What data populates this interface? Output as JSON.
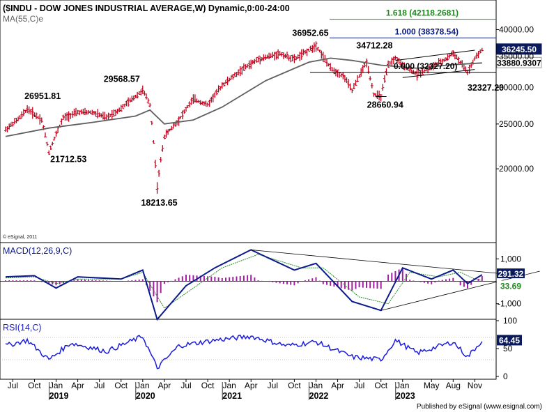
{
  "title": "($INDU - DOW JONES INDUSTRIAL AVERAGE,W) Dynamic,0:00-24:00",
  "ma_label": "MA(55,C)e",
  "copyright": "© eSignal, 2011",
  "publisher": "Published by eSignal (www.esignal.com)",
  "colors": {
    "price": "#c0001a",
    "ma": "#606060",
    "macd": "#0a1a8c",
    "signal": "#2a8a2a",
    "histogram": "#a020a0",
    "rsi": "#1a1adc",
    "fib_green": "#1a8a1a",
    "fib_blue": "#0a1a7c",
    "badge_bg": "#0a1a5c",
    "badge_alt_bg": "#ffffff",
    "badge_green_bg": "#1a8a1a"
  },
  "chart_data": [
    {
      "type": "line",
      "name": "price",
      "title": "($INDU - DOW JONES INDUSTRIAL AVERAGE,W) Dynamic,0:00-24:00",
      "scale": "log",
      "ylim": [
        15000,
        44000
      ],
      "y_ticks": [
        "40000.00",
        "35000.00",
        "30000.00",
        "25000.00",
        "20000.00"
      ],
      "y_tick_values": [
        40000,
        35000,
        30000,
        25000,
        20000
      ],
      "x_labels": [
        "Jul",
        "Oct",
        "Jan",
        "Apr",
        "Jul",
        "Oct",
        "Jan",
        "Apr",
        "Jul",
        "Oct",
        "Jan",
        "Apr",
        "Jul",
        "Oct",
        "Jan",
        "Apr",
        "Jul",
        "Oct",
        "Jan",
        "May",
        "Aug",
        "Nov"
      ],
      "x_label_dates": [
        "2018-07",
        "2018-10",
        "2019-01",
        "2019-04",
        "2019-07",
        "2019-10",
        "2020-01",
        "2020-04",
        "2020-07",
        "2020-10",
        "2021-01",
        "2021-04",
        "2021-07",
        "2021-10",
        "2022-01",
        "2022-04",
        "2022-07",
        "2022-10",
        "2023-01",
        "2023-05",
        "2023-08",
        "2023-11"
      ],
      "x_years": [
        "2019",
        "2020",
        "2021",
        "2022",
        "2023"
      ],
      "series": [
        {
          "name": "$INDU",
          "points": [
            [
              "2018-06",
              24300
            ],
            [
              "2018-08",
              25800
            ],
            [
              "2018-09",
              26951.81
            ],
            [
              "2018-11",
              25500
            ],
            [
              "2018-12",
              21712.53
            ],
            [
              "2019-02",
              25800
            ],
            [
              "2019-04",
              26500
            ],
            [
              "2019-06",
              26500
            ],
            [
              "2019-08",
              25800
            ],
            [
              "2019-10",
              27000
            ],
            [
              "2020-01",
              29568.57
            ],
            [
              "2020-02",
              27500
            ],
            [
              "2020-03",
              18213.65
            ],
            [
              "2020-04",
              23500
            ],
            [
              "2020-06",
              25500
            ],
            [
              "2020-08",
              28300
            ],
            [
              "2020-10",
              27500
            ],
            [
              "2020-12",
              30300
            ],
            [
              "2021-03",
              33000
            ],
            [
              "2021-05",
              34500
            ],
            [
              "2021-08",
              35500
            ],
            [
              "2021-10",
              34500
            ],
            [
              "2022-01",
              36952.65
            ],
            [
              "2022-03",
              33000
            ],
            [
              "2022-05",
              31500
            ],
            [
              "2022-06",
              29500
            ],
            [
              "2022-08",
              34000
            ],
            [
              "2022-09",
              29000
            ],
            [
              "2022-10",
              28660.94
            ],
            [
              "2022-11",
              33500
            ],
            [
              "2022-12",
              34712.28
            ],
            [
              "2023-01",
              33500
            ],
            [
              "2023-03",
              32000
            ],
            [
              "2023-05",
              33200
            ],
            [
              "2023-07",
              34500
            ],
            [
              "2023-08",
              35600
            ],
            [
              "2023-09",
              34000
            ],
            [
              "2023-10",
              32327.2
            ],
            [
              "2023-11",
              34500
            ],
            [
              "2023-12",
              36245.5
            ]
          ]
        },
        {
          "name": "MA(55,C)e",
          "points": [
            [
              "2018-06",
              23500
            ],
            [
              "2018-12",
              24500
            ],
            [
              "2019-06",
              25200
            ],
            [
              "2019-12",
              26000
            ],
            [
              "2020-02",
              26800
            ],
            [
              "2020-04",
              25000
            ],
            [
              "2020-08",
              25500
            ],
            [
              "2020-12",
              27200
            ],
            [
              "2021-06",
              31000
            ],
            [
              "2021-12",
              34000
            ],
            [
              "2022-03",
              34700
            ],
            [
              "2022-06",
              34300
            ],
            [
              "2022-10",
              33500
            ],
            [
              "2023-03",
              33000
            ],
            [
              "2023-08",
              33600
            ],
            [
              "2023-12",
              33880.9307
            ]
          ]
        }
      ],
      "annotations": [
        "26951.81",
        "21712.53",
        "29568.57",
        "18213.65",
        "36952.65",
        "34712.28",
        "28660.94",
        "32327.20"
      ],
      "fib_levels": [
        {
          "label": "1.618 (42118.2681)",
          "value": 42118.2681
        },
        {
          "label": "1.000 (38378.54)",
          "value": 38378.54
        },
        {
          "label": "0.000 (32327.20)",
          "value": 32327.2
        }
      ],
      "badges": [
        {
          "label": "36245.50",
          "value": 36245.5
        },
        {
          "label": "33880.9307",
          "value": 33880.9307
        }
      ]
    },
    {
      "type": "line",
      "name": "macd",
      "title": "MACD(12,26,9,C)",
      "ylim": [
        -1600,
        1600
      ],
      "y_ticks": [
        "1,000",
        "-1,000"
      ],
      "y_tick_values": [
        1000,
        -1000
      ],
      "series": [
        {
          "name": "MACD",
          "points": [
            [
              "2018-06",
              200
            ],
            [
              "2018-10",
              250
            ],
            [
              "2019-01",
              -300
            ],
            [
              "2019-04",
              200
            ],
            [
              "2019-10",
              100
            ],
            [
              "2020-01",
              500
            ],
            [
              "2020-03",
              -1700
            ],
            [
              "2020-07",
              -200
            ],
            [
              "2020-11",
              600
            ],
            [
              "2021-04",
              1400
            ],
            [
              "2021-10",
              500
            ],
            [
              "2022-01",
              800
            ],
            [
              "2022-06",
              -900
            ],
            [
              "2022-10",
              -1300
            ],
            [
              "2023-01",
              600
            ],
            [
              "2023-05",
              100
            ],
            [
              "2023-08",
              500
            ],
            [
              "2023-10",
              -100
            ],
            [
              "2023-12",
              291.32
            ]
          ]
        },
        {
          "name": "Signal",
          "points": [
            [
              "2018-06",
              150
            ],
            [
              "2018-10",
              200
            ],
            [
              "2019-01",
              -100
            ],
            [
              "2019-04",
              100
            ],
            [
              "2019-10",
              100
            ],
            [
              "2020-01",
              400
            ],
            [
              "2020-04",
              -1200
            ],
            [
              "2020-08",
              -300
            ],
            [
              "2020-12",
              600
            ],
            [
              "2021-05",
              1200
            ],
            [
              "2021-11",
              600
            ],
            [
              "2022-02",
              600
            ],
            [
              "2022-07",
              -700
            ],
            [
              "2022-11",
              -1000
            ],
            [
              "2023-02",
              400
            ],
            [
              "2023-06",
              200
            ],
            [
              "2023-09",
              400
            ],
            [
              "2023-11",
              100
            ],
            [
              "2023-12",
              33.69
            ]
          ]
        }
      ],
      "badges": [
        {
          "label": "291.32",
          "value": 291.32
        },
        {
          "label": "33.69",
          "value": 33.69
        }
      ]
    },
    {
      "type": "line",
      "name": "rsi",
      "title": "RSI(14,C)",
      "ylim": [
        0,
        100
      ],
      "y_ticks": [
        "100",
        "50",
        "0"
      ],
      "y_tick_values": [
        100,
        50,
        0
      ],
      "series": [
        {
          "name": "RSI",
          "points": [
            [
              "2018-06",
              55
            ],
            [
              "2018-09",
              65
            ],
            [
              "2018-12",
              30
            ],
            [
              "2019-03",
              60
            ],
            [
              "2019-08",
              45
            ],
            [
              "2020-01",
              72
            ],
            [
              "2020-03",
              15
            ],
            [
              "2020-06",
              55
            ],
            [
              "2020-11",
              65
            ],
            [
              "2021-04",
              72
            ],
            [
              "2021-09",
              55
            ],
            [
              "2022-01",
              62
            ],
            [
              "2022-06",
              35
            ],
            [
              "2022-10",
              30
            ],
            [
              "2022-12",
              65
            ],
            [
              "2023-03",
              42
            ],
            [
              "2023-08",
              62
            ],
            [
              "2023-10",
              35
            ],
            [
              "2023-12",
              64.45
            ]
          ]
        }
      ],
      "badges": [
        {
          "label": "64.45",
          "value": 64.45
        }
      ]
    }
  ]
}
